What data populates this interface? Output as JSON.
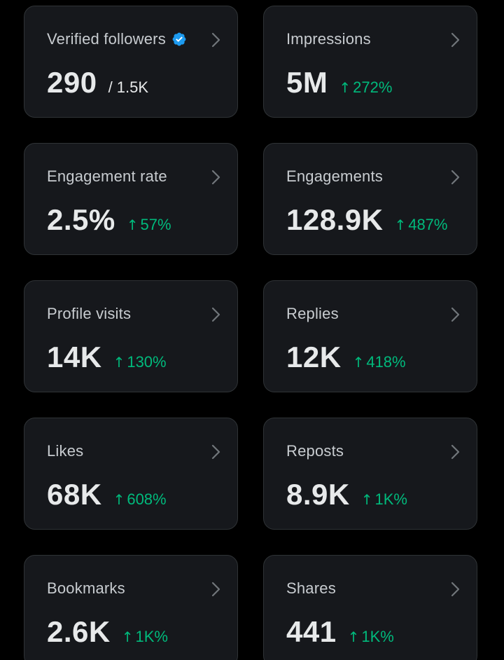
{
  "colors": {
    "background": "#000000",
    "card": "#16181c",
    "card_border": "#2f3336",
    "text": "#e7e9ea",
    "label": "#c8ccd0",
    "positive": "#00ba7c",
    "verified": "#1d9bf0"
  },
  "cards": [
    {
      "label": "Verified followers",
      "value": "290",
      "sub": "/ 1.5K",
      "verified": true
    },
    {
      "label": "Impressions",
      "value": "5M",
      "change": "272%"
    },
    {
      "label": "Engagement rate",
      "value": "2.5%",
      "change": "57%"
    },
    {
      "label": "Engagements",
      "value": "128.9K",
      "change": "487%"
    },
    {
      "label": "Profile visits",
      "value": "14K",
      "change": "130%"
    },
    {
      "label": "Replies",
      "value": "12K",
      "change": "418%"
    },
    {
      "label": "Likes",
      "value": "68K",
      "change": "608%"
    },
    {
      "label": "Reposts",
      "value": "8.9K",
      "change": "1K%"
    },
    {
      "label": "Bookmarks",
      "value": "2.6K",
      "change": "1K%"
    },
    {
      "label": "Shares",
      "value": "441",
      "change": "1K%"
    }
  ],
  "icons": {
    "chevron": "chevron-right-icon",
    "verified": "verified-badge-icon",
    "up_arrow": "arrow-up-icon",
    "up_arrow_glyph": "↑"
  }
}
